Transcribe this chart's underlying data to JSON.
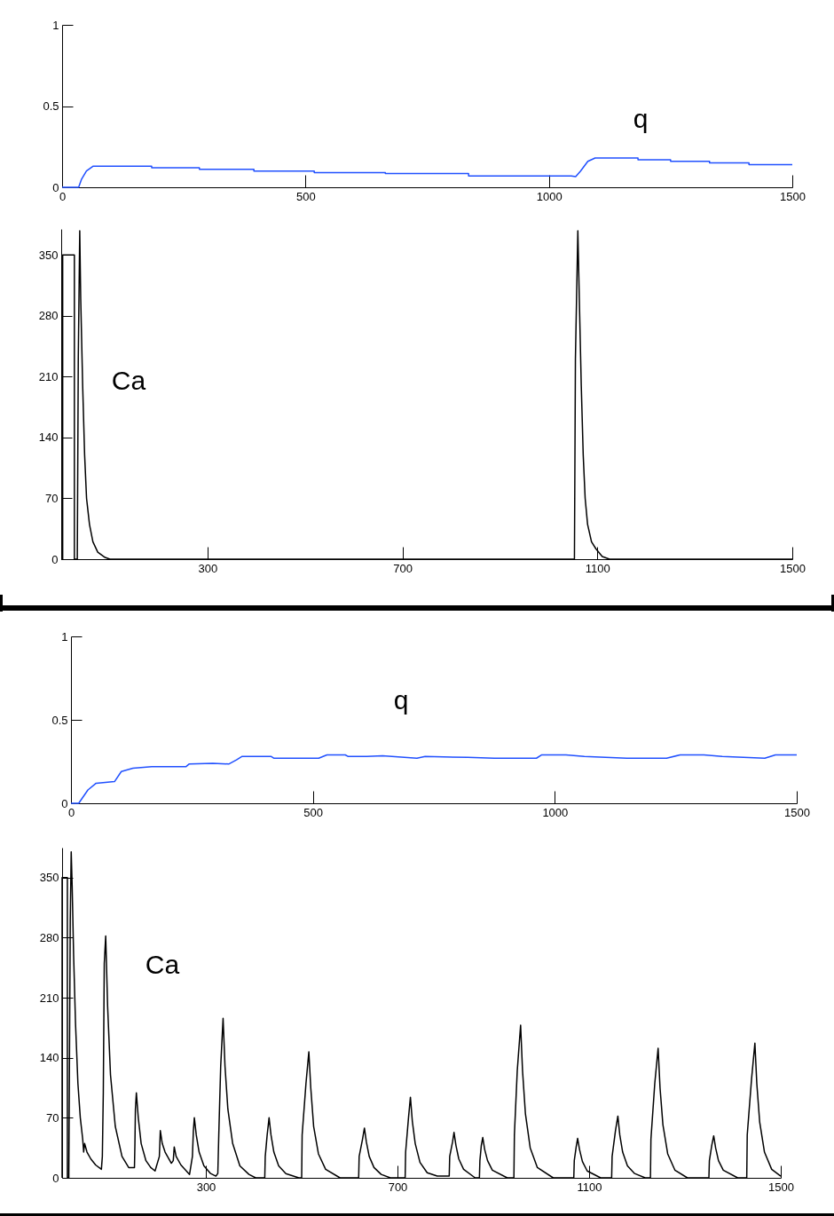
{
  "chart_data": [
    {
      "type": "line",
      "xlim": [
        0,
        1500
      ],
      "xticks": [
        0,
        500,
        1000,
        1500
      ],
      "ylim": [
        0,
        1
      ],
      "yticks": [
        0,
        0.5,
        1
      ],
      "x": [
        0,
        34,
        40,
        50,
        64,
        184,
        184,
        282,
        282,
        394,
        394,
        518,
        518,
        664,
        664,
        835,
        835,
        1046,
        1055,
        1065,
        1080,
        1095,
        1183,
        1183,
        1250,
        1250,
        1330,
        1330,
        1411,
        1411,
        1500
      ],
      "series": [
        {
          "color": "#2050ff",
          "values": [
            0,
            0,
            0.05,
            0.1,
            0.13,
            0.13,
            0.12,
            0.12,
            0.11,
            0.11,
            0.1,
            0.1,
            0.09,
            0.09,
            0.085,
            0.085,
            0.07,
            0.07,
            0.065,
            0.1,
            0.16,
            0.18,
            0.18,
            0.17,
            0.17,
            0.16,
            0.16,
            0.15,
            0.15,
            0.14,
            0.14
          ]
        }
      ],
      "annotations": [
        "q"
      ]
    },
    {
      "type": "line",
      "xlim": [
        0,
        1500
      ],
      "xticks": [
        300,
        700,
        1100,
        1500
      ],
      "ylim": [
        0,
        380
      ],
      "yticks": [
        0,
        70,
        140,
        210,
        280,
        350
      ],
      "x": [
        0,
        3,
        3,
        27,
        27,
        33,
        35,
        38,
        40,
        44,
        48,
        52,
        58,
        65,
        75,
        90,
        100,
        1053,
        1055,
        1060,
        1063,
        1067,
        1071,
        1075,
        1080,
        1088,
        1097,
        1110,
        1125,
        1500
      ],
      "series": [
        {
          "color": "#000000",
          "values": [
            0,
            0,
            350,
            350,
            0,
            0,
            230,
            378,
            300,
            200,
            120,
            70,
            40,
            20,
            8,
            2,
            0,
            0,
            230,
            378,
            300,
            200,
            120,
            70,
            40,
            20,
            12,
            3,
            0,
            0
          ]
        }
      ],
      "annotations": [
        "Ca"
      ]
    },
    {
      "type": "line",
      "xlim": [
        0,
        1500
      ],
      "xticks": [
        0,
        500,
        1000,
        1500
      ],
      "ylim": [
        0,
        1
      ],
      "yticks": [
        0,
        0.5,
        1
      ],
      "x": [
        0,
        16,
        35,
        52,
        90,
        104,
        128,
        167,
        238,
        244,
        293,
        326,
        342,
        353,
        414,
        419,
        490,
        512,
        529,
        567,
        573,
        611,
        644,
        715,
        732,
        820,
        875,
        962,
        973,
        1023,
        1061,
        1149,
        1231,
        1259,
        1308,
        1346,
        1434,
        1456,
        1500
      ],
      "series": [
        {
          "color": "#2050ff",
          "values": [
            0,
            0,
            0.08,
            0.12,
            0.13,
            0.19,
            0.21,
            0.22,
            0.22,
            0.235,
            0.24,
            0.235,
            0.26,
            0.28,
            0.28,
            0.27,
            0.27,
            0.27,
            0.29,
            0.29,
            0.28,
            0.28,
            0.285,
            0.27,
            0.28,
            0.275,
            0.27,
            0.27,
            0.29,
            0.29,
            0.28,
            0.27,
            0.27,
            0.29,
            0.29,
            0.28,
            0.27,
            0.29,
            0.29
          ]
        }
      ],
      "annotations": [
        "q"
      ]
    },
    {
      "type": "line",
      "xlim": [
        0,
        1500
      ],
      "xticks": [
        300,
        700,
        1100,
        1500
      ],
      "ylim": [
        0,
        385
      ],
      "yticks": [
        0,
        70,
        140,
        210,
        280,
        350
      ],
      "x": [
        0,
        0,
        11,
        11,
        14,
        15,
        17,
        19,
        21,
        24,
        28,
        33,
        38,
        43,
        45,
        47,
        52,
        60,
        70,
        82,
        84,
        86,
        88,
        91,
        95,
        101,
        111,
        125,
        139,
        151,
        152,
        153,
        155,
        159,
        165,
        175,
        185,
        194,
        203,
        205,
        209,
        215,
        228,
        232,
        234,
        238,
        248,
        266,
        272,
        274,
        276,
        280,
        286,
        296,
        310,
        321,
        325,
        327,
        331,
        336,
        340,
        346,
        356,
        371,
        390,
        404,
        423,
        424,
        428,
        432,
        436,
        442,
        452,
        467,
        494,
        500,
        501,
        509,
        515,
        519,
        525,
        535,
        550,
        580,
        619,
        620,
        627,
        631,
        635,
        641,
        651,
        666,
        685,
        716,
        717,
        723,
        727,
        731,
        737,
        747,
        762,
        783,
        808,
        809,
        815,
        818,
        822,
        828,
        838,
        862,
        871,
        872,
        875,
        878,
        882,
        888,
        898,
        929,
        943,
        944,
        950,
        957,
        961,
        967,
        977,
        992,
        1025,
        1068,
        1069,
        1073,
        1076,
        1080,
        1086,
        1096,
        1124,
        1147,
        1148,
        1155,
        1160,
        1164,
        1170,
        1180,
        1195,
        1217,
        1228,
        1229,
        1237,
        1244,
        1248,
        1254,
        1264,
        1279,
        1305,
        1350,
        1351,
        1356,
        1360,
        1364,
        1370,
        1380,
        1410,
        1429,
        1430,
        1439,
        1446,
        1450,
        1456,
        1466,
        1481,
        1500
      ],
      "series": [
        {
          "color": "#000000",
          "values": [
            0,
            350,
            350,
            0,
            0,
            100,
            300,
            380,
            340,
            260,
            180,
            110,
            70,
            45,
            30,
            40,
            30,
            22,
            15,
            10,
            25,
            100,
            250,
            282,
            200,
            120,
            60,
            25,
            12,
            12,
            40,
            80,
            99,
            70,
            40,
            20,
            12,
            8,
            25,
            55,
            40,
            30,
            17,
            20,
            36,
            25,
            15,
            4,
            25,
            55,
            70,
            50,
            30,
            14,
            5,
            2,
            5,
            50,
            130,
            186,
            130,
            80,
            40,
            14,
            4,
            0,
            0,
            25,
            50,
            70,
            50,
            30,
            14,
            5,
            0,
            0,
            50,
            110,
            147,
            105,
            60,
            28,
            10,
            0,
            0,
            25,
            45,
            58,
            42,
            25,
            12,
            4,
            0,
            0,
            30,
            70,
            94,
            66,
            40,
            18,
            6,
            2,
            2,
            25,
            42,
            53,
            38,
            22,
            10,
            0,
            0,
            20,
            38,
            47,
            33,
            20,
            9,
            0,
            0,
            50,
            125,
            178,
            125,
            75,
            35,
            12,
            0,
            0,
            20,
            36,
            46,
            33,
            19,
            8,
            0,
            0,
            25,
            55,
            72,
            50,
            30,
            14,
            5,
            0,
            0,
            45,
            110,
            151,
            105,
            62,
            28,
            9,
            0,
            0,
            20,
            38,
            49,
            35,
            20,
            9,
            0,
            0,
            50,
            115,
            157,
            110,
            65,
            30,
            10,
            2
          ]
        }
      ],
      "annotations": [
        "Ca"
      ]
    }
  ]
}
